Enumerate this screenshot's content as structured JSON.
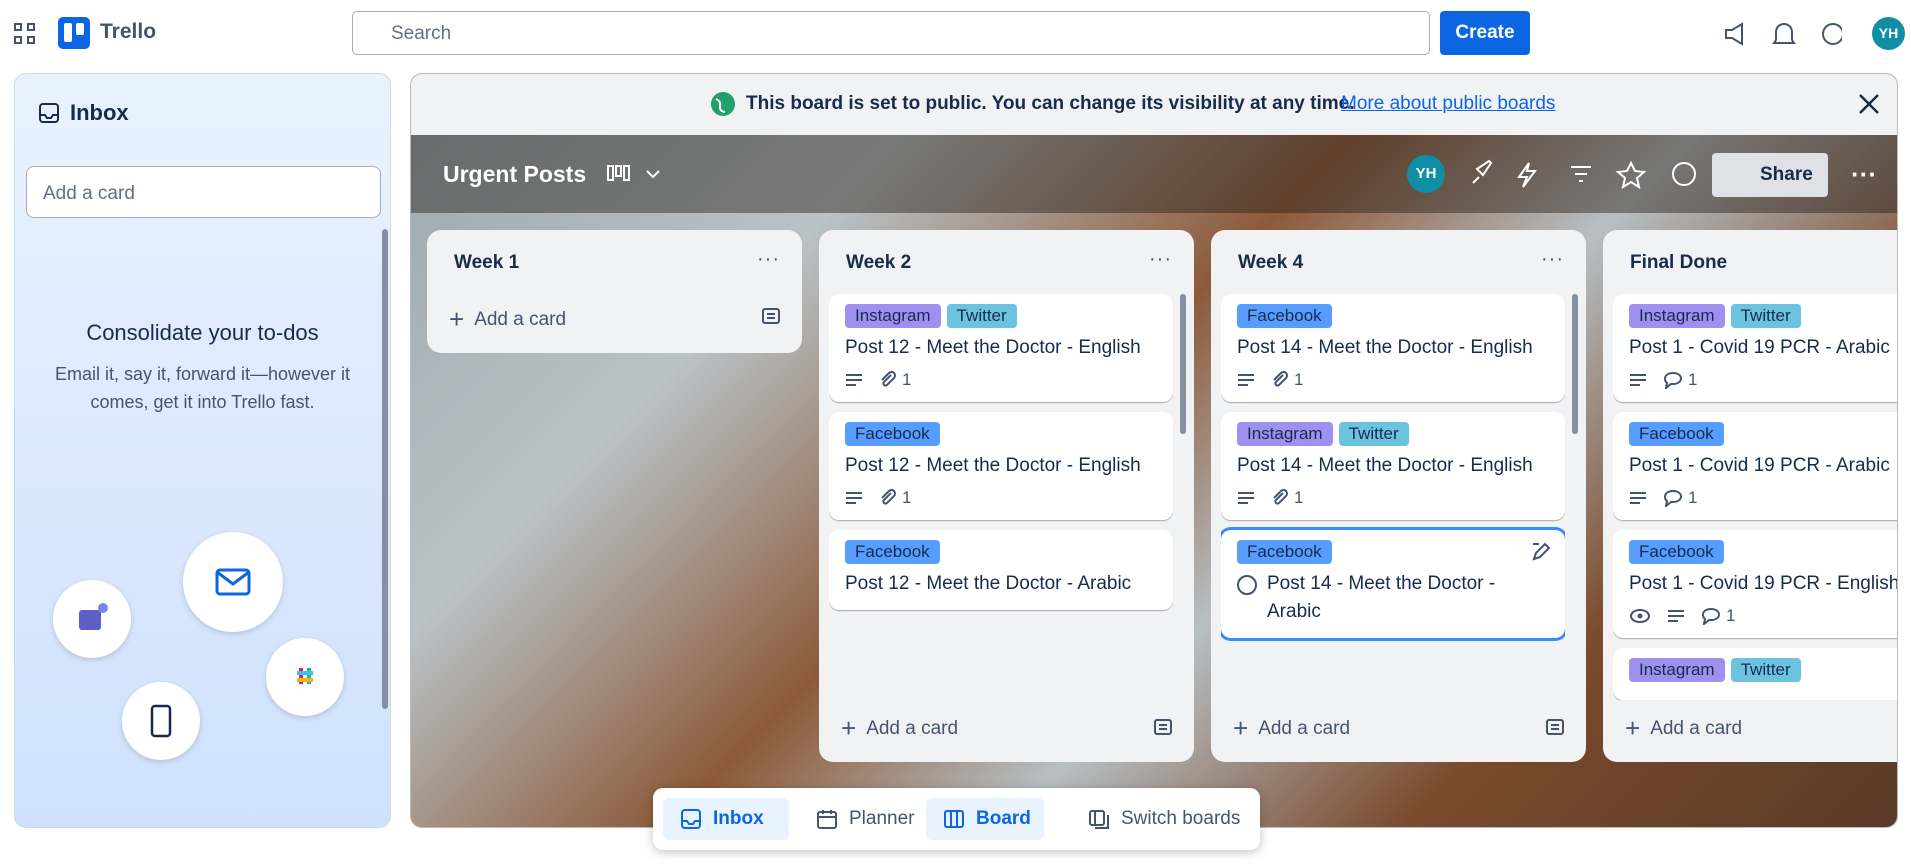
{
  "topbar": {
    "app_name": "Trello",
    "search_placeholder": "Search",
    "create": "Create",
    "avatar": "YH"
  },
  "inbox": {
    "title": "Inbox",
    "add_placeholder": "Add a card",
    "heading": "Consolidate your to-dos",
    "text": "Email it, say it, forward it—however it comes, get it into Trello fast."
  },
  "banner": {
    "text": "This board is set to public. You can change its visibility at any time.",
    "link": "More about public boards"
  },
  "board": {
    "title": "Urgent Posts",
    "avatar": "YH",
    "share": "Share"
  },
  "lists": [
    {
      "title": "Week 1",
      "add": "Add a card",
      "cards": []
    },
    {
      "title": "Week 2",
      "add": "Add a card",
      "cards": [
        {
          "labels": [
            "Instagram",
            "Twitter"
          ],
          "title": "Post 12 - Meet the Doctor - English",
          "attachments": "1"
        },
        {
          "labels": [
            "Facebook"
          ],
          "title": "Post 12 - Meet the Doctor - English",
          "attachments": "1"
        },
        {
          "labels": [
            "Facebook"
          ],
          "title": "Post 12 - Meet the Doctor - Arabic"
        }
      ]
    },
    {
      "title": "Week 4",
      "add": "Add a card",
      "cards": [
        {
          "labels": [
            "Facebook"
          ],
          "title": "Post 14 - Meet the Doctor - English",
          "attachments": "1"
        },
        {
          "labels": [
            "Instagram",
            "Twitter"
          ],
          "title": "Post 14 - Meet the Doctor - English",
          "attachments": "1"
        },
        {
          "labels": [
            "Facebook"
          ],
          "title": "Post 14 - Meet the Doctor - Arabic"
        }
      ]
    },
    {
      "title": "Final Done",
      "add": "Add a card",
      "cards": [
        {
          "labels": [
            "Instagram",
            "Twitter"
          ],
          "title": "Post 1 - Covid 19 PCR - Arabic",
          "comments": "1"
        },
        {
          "labels": [
            "Facebook"
          ],
          "title": "Post 1 - Covid 19 PCR - Arabic",
          "comments": "1"
        },
        {
          "labels": [
            "Facebook"
          ],
          "title": "Post 1 - Covid 19 PCR - English",
          "comments": "1"
        },
        {
          "labels": [
            "Instagram",
            "Twitter"
          ]
        }
      ]
    }
  ],
  "bottom_nav": [
    "Inbox",
    "Planner",
    "Board",
    "Switch boards"
  ]
}
